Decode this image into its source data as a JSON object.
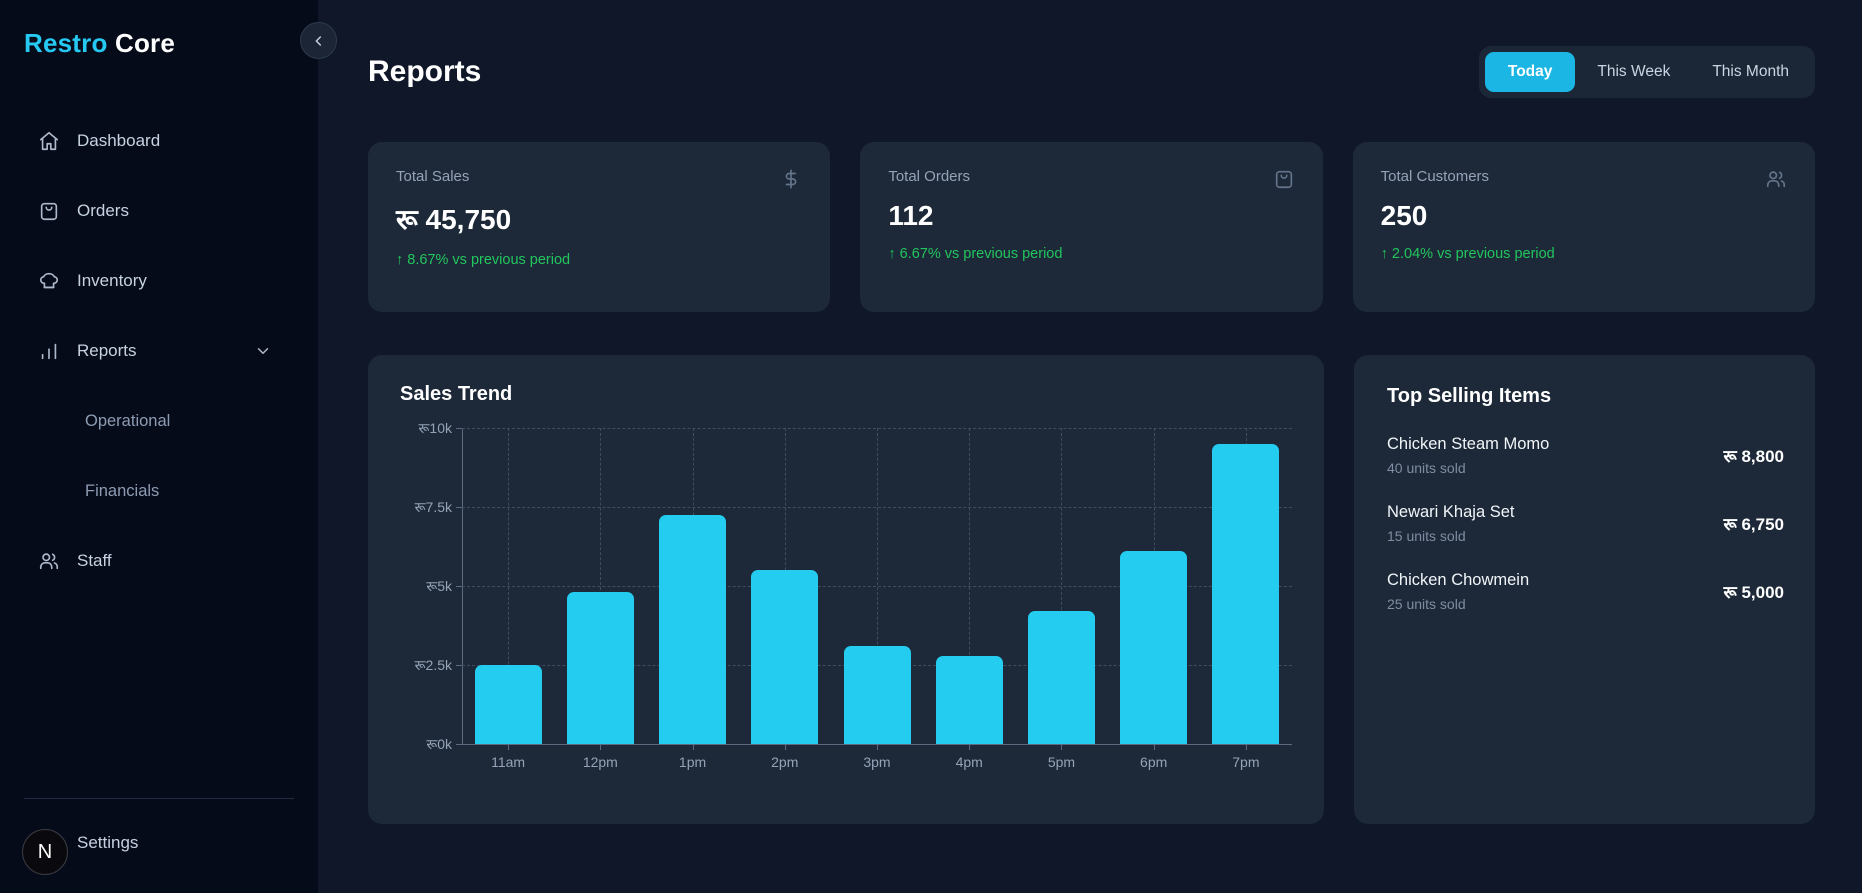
{
  "brand": {
    "accent": "Restro",
    "rest": "Core"
  },
  "sidebar": {
    "items": [
      {
        "label": "Dashboard"
      },
      {
        "label": "Orders"
      },
      {
        "label": "Inventory"
      },
      {
        "label": "Reports"
      },
      {
        "label": "Operational"
      },
      {
        "label": "Financials"
      },
      {
        "label": "Staff"
      }
    ],
    "settings_label": "Settings",
    "avatar_letter": "N"
  },
  "header": {
    "title": "Reports",
    "filters": [
      {
        "label": "Today",
        "active": true
      },
      {
        "label": "This Week",
        "active": false
      },
      {
        "label": "This Month",
        "active": false
      }
    ]
  },
  "stats": [
    {
      "label": "Total Sales",
      "value": "रू 45,750",
      "delta": "↑ 8.67% vs previous period"
    },
    {
      "label": "Total Orders",
      "value": "112",
      "delta": "↑ 6.67% vs previous period"
    },
    {
      "label": "Total Customers",
      "value": "250",
      "delta": "↑ 2.04% vs previous period"
    }
  ],
  "chart_data": {
    "type": "bar",
    "title": "Sales Trend",
    "categories": [
      "11am",
      "12pm",
      "1pm",
      "2pm",
      "3pm",
      "4pm",
      "5pm",
      "6pm",
      "7pm"
    ],
    "values": [
      2500,
      4800,
      7250,
      5500,
      3100,
      2800,
      4200,
      6100,
      9500
    ],
    "y_ticks": [
      "रू0k",
      "रू2.5k",
      "रू5k",
      "रू7.5k",
      "रू10k"
    ],
    "ylim": [
      0,
      10000
    ],
    "grid": "dashed-both-axes",
    "legend": "none",
    "bar_color": "#24CDEF"
  },
  "top_items": {
    "title": "Top Selling Items",
    "items": [
      {
        "name": "Chicken Steam Momo",
        "units": "40 units sold",
        "price": "रू 8,800"
      },
      {
        "name": "Newari Khaja Set",
        "units": "15 units sold",
        "price": "रू 6,750"
      },
      {
        "name": "Chicken Chowmein",
        "units": "25 units sold",
        "price": "रू 5,000"
      }
    ]
  },
  "colors": {
    "accent_cyan": "#25C9F1",
    "button_cyan": "#1BB6E4",
    "bar_cyan": "#24CDEF",
    "positive_green": "#22C55E",
    "sidebar_bg": "#060B1A",
    "main_bg": "#0F1728",
    "card_bg": "#1D2938"
  }
}
